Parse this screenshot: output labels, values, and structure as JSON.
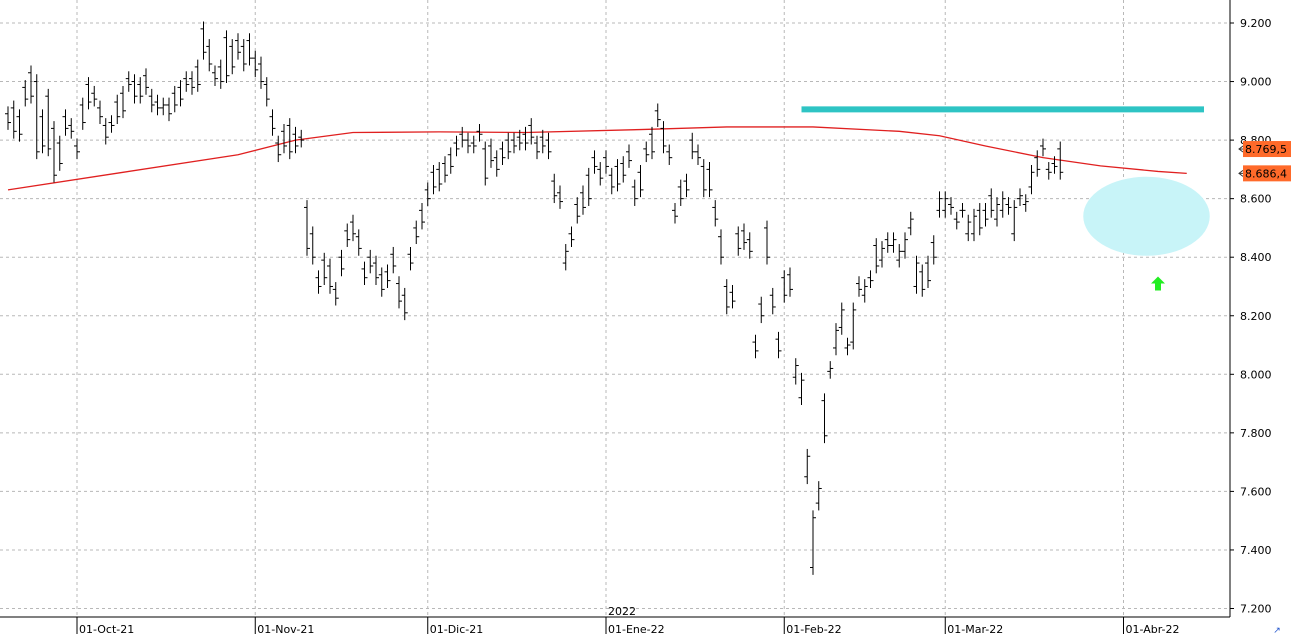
{
  "chart_data": {
    "type": "ohlc",
    "grid": true,
    "ylim": [
      7200,
      9250
    ],
    "y_ticks": [
      {
        "value": 9200,
        "label": "9.200"
      },
      {
        "value": 9000,
        "label": "9.000"
      },
      {
        "value": 8800,
        "label": "8.800"
      },
      {
        "value": 8600,
        "label": "8.600"
      },
      {
        "value": 8400,
        "label": "8.400"
      },
      {
        "value": 8200,
        "label": "8.200"
      },
      {
        "value": 8000,
        "label": "8.000"
      },
      {
        "value": 7800,
        "label": "7.800"
      },
      {
        "value": 7600,
        "label": "7.600"
      },
      {
        "value": 7400,
        "label": "7.400"
      },
      {
        "value": 7200,
        "label": "7.200"
      }
    ],
    "x_ticks": [
      {
        "bar": 12,
        "label": "01-Oct-21"
      },
      {
        "bar": 43,
        "label": "01-Nov-21"
      },
      {
        "bar": 73,
        "label": "01-Dic-21"
      },
      {
        "bar": 104,
        "label": "01-Ene-22",
        "year": "2022"
      },
      {
        "bar": 135,
        "label": "01-Feb-22"
      },
      {
        "bar": 163,
        "label": "01-Mar-22"
      },
      {
        "bar": 194,
        "label": "01-Abr-22"
      }
    ],
    "bars": [
      [
        8890,
        8860
      ],
      [
        8910,
        8830
      ],
      [
        8880,
        8820
      ],
      [
        8980,
        8940
      ],
      [
        9030,
        8950
      ],
      [
        9000,
        8760
      ],
      [
        8880,
        8780
      ],
      [
        8950,
        8770
      ],
      [
        8840,
        8680
      ],
      [
        8790,
        8720
      ],
      [
        8880,
        8840
      ],
      [
        8850,
        8830
      ],
      [
        8780,
        8760
      ],
      [
        8920,
        8860
      ],
      [
        8990,
        8930
      ],
      [
        8960,
        8940
      ],
      [
        8910,
        8880
      ],
      [
        8850,
        8810
      ],
      [
        8860,
        8850
      ],
      [
        8930,
        8880
      ],
      [
        8960,
        8900
      ],
      [
        9010,
        8990
      ],
      [
        9000,
        8950
      ],
      [
        8990,
        8950
      ],
      [
        9020,
        8980
      ],
      [
        8950,
        8920
      ],
      [
        8930,
        8910
      ],
      [
        8910,
        8920
      ],
      [
        8920,
        8890
      ],
      [
        8960,
        8920
      ],
      [
        8980,
        8940
      ],
      [
        9010,
        8990
      ],
      [
        9010,
        8980
      ],
      [
        9050,
        8990
      ],
      [
        9180,
        9100
      ],
      [
        9120,
        9060
      ],
      [
        9030,
        9010
      ],
      [
        9050,
        9000
      ],
      [
        9150,
        9020
      ],
      [
        9120,
        9050
      ],
      [
        9140,
        9100
      ],
      [
        9120,
        9060
      ],
      [
        9140,
        9080
      ],
      [
        9080,
        9040
      ],
      [
        9060,
        9000
      ],
      [
        8990,
        8940
      ],
      [
        8880,
        8840
      ],
      [
        8790,
        8750
      ],
      [
        8830,
        8780
      ],
      [
        8850,
        8760
      ],
      [
        8820,
        8780
      ],
      [
        8810,
        8800
      ],
      [
        8570,
        8430
      ],
      [
        8480,
        8400
      ],
      [
        8330,
        8300
      ],
      [
        8390,
        8330
      ],
      [
        8370,
        8300
      ],
      [
        8290,
        8260
      ],
      [
        8400,
        8360
      ],
      [
        8490,
        8460
      ],
      [
        8520,
        8480
      ],
      [
        8470,
        8430
      ],
      [
        8360,
        8330
      ],
      [
        8400,
        8370
      ],
      [
        8380,
        8330
      ],
      [
        8340,
        8290
      ],
      [
        8350,
        8320
      ],
      [
        8410,
        8370
      ],
      [
        8310,
        8250
      ],
      [
        8270,
        8210
      ],
      [
        8410,
        8380
      ],
      [
        8500,
        8470
      ],
      [
        8560,
        8520
      ],
      [
        8630,
        8600
      ],
      [
        8690,
        8640
      ],
      [
        8700,
        8650
      ],
      [
        8720,
        8680
      ],
      [
        8750,
        8710
      ],
      [
        8790,
        8770
      ],
      [
        8820,
        8800
      ],
      [
        8800,
        8780
      ],
      [
        8790,
        8780
      ],
      [
        8830,
        8820
      ],
      [
        8770,
        8670
      ],
      [
        8780,
        8730
      ],
      [
        8740,
        8700
      ],
      [
        8770,
        8740
      ],
      [
        8800,
        8760
      ],
      [
        8800,
        8780
      ],
      [
        8810,
        8790
      ],
      [
        8820,
        8790
      ],
      [
        8850,
        8810
      ],
      [
        8790,
        8760
      ],
      [
        8810,
        8780
      ],
      [
        8800,
        8760
      ],
      [
        8660,
        8610
      ],
      [
        8620,
        8590
      ],
      [
        8380,
        8420
      ],
      [
        8480,
        8460
      ],
      [
        8580,
        8540
      ],
      [
        8620,
        8570
      ],
      [
        8680,
        8600
      ],
      [
        8740,
        8710
      ],
      [
        8700,
        8670
      ],
      [
        8740,
        8710
      ],
      [
        8680,
        8640
      ],
      [
        8710,
        8650
      ],
      [
        8720,
        8680
      ],
      [
        8760,
        8730
      ],
      [
        8640,
        8600
      ],
      [
        8690,
        8630
      ],
      [
        8770,
        8750
      ],
      [
        8820,
        8760
      ],
      [
        8900,
        8870
      ],
      [
        8840,
        8780
      ],
      [
        8760,
        8740
      ],
      [
        8560,
        8540
      ],
      [
        8640,
        8600
      ],
      [
        8660,
        8630
      ],
      [
        8800,
        8760
      ],
      [
        8760,
        8740
      ],
      [
        8710,
        8630
      ],
      [
        8700,
        8630
      ],
      [
        8570,
        8530
      ],
      [
        8470,
        8400
      ],
      [
        8300,
        8230
      ],
      [
        8280,
        8250
      ],
      [
        8480,
        8430
      ],
      [
        8490,
        8450
      ],
      [
        8460,
        8420
      ],
      [
        8110,
        8080
      ],
      [
        8240,
        8200
      ],
      [
        8500,
        8400
      ],
      [
        8270,
        8230
      ],
      [
        8120,
        8080
      ],
      [
        8330,
        8270
      ],
      [
        8340,
        8290
      ],
      [
        7990,
        8030
      ],
      [
        7920,
        7980
      ],
      [
        7650,
        7720
      ],
      [
        7340,
        7510
      ],
      [
        7560,
        7610
      ],
      [
        7910,
        7790
      ],
      [
        8010,
        8020
      ],
      [
        8090,
        8150
      ],
      [
        8160,
        8220
      ],
      [
        8090,
        8100
      ],
      [
        8110,
        8220
      ],
      [
        8310,
        8290
      ],
      [
        8270,
        8300
      ],
      [
        8330,
        8320
      ],
      [
        8440,
        8370
      ],
      [
        8390,
        8430
      ],
      [
        8460,
        8440
      ],
      [
        8440,
        8460
      ],
      [
        8390,
        8420
      ],
      [
        8420,
        8460
      ],
      [
        8500,
        8530
      ],
      [
        8300,
        8380
      ],
      [
        8350,
        8290
      ],
      [
        8380,
        8320
      ],
      [
        8450,
        8400
      ],
      [
        8560,
        8600
      ],
      [
        8560,
        8600
      ],
      [
        8580,
        8570
      ],
      [
        8530,
        8520
      ],
      [
        8560,
        8560
      ],
      [
        8480,
        8520
      ],
      [
        8480,
        8540
      ],
      [
        8560,
        8500
      ],
      [
        8560,
        8530
      ],
      [
        8610,
        8560
      ],
      [
        8530,
        8580
      ],
      [
        8560,
        8600
      ],
      [
        8580,
        8570
      ],
      [
        8480,
        8570
      ],
      [
        8600,
        8610
      ],
      [
        8580,
        8590
      ],
      [
        8640,
        8690
      ],
      [
        8740,
        8700
      ],
      [
        8780,
        8770
      ],
      [
        8700,
        8690
      ],
      [
        8720,
        8710
      ],
      [
        8770,
        8690
      ]
    ],
    "moving_average": {
      "color": "#e02020",
      "points": [
        [
          0,
          8630
        ],
        [
          20,
          8690
        ],
        [
          40,
          8750
        ],
        [
          50,
          8800
        ],
        [
          60,
          8826
        ],
        [
          75,
          8828
        ],
        [
          90,
          8826
        ],
        [
          110,
          8836
        ],
        [
          125,
          8845
        ],
        [
          140,
          8845
        ],
        [
          155,
          8830
        ],
        [
          162,
          8815
        ],
        [
          170,
          8780
        ],
        [
          180,
          8740
        ],
        [
          190,
          8712
        ],
        [
          200,
          8693
        ],
        [
          205,
          8686.4
        ]
      ]
    },
    "resistance": {
      "value": 8905,
      "from_bar": 138,
      "to_bar": 208,
      "color": "#2ec4c4"
    },
    "consolidation_ellipse": {
      "from_bar": 187,
      "to_bar": 209,
      "low": 8405,
      "high": 8675,
      "color": "#c8f4f8"
    },
    "signal_arrow": {
      "bar": 200,
      "value": 8310,
      "direction": "up",
      "color": "#22ee22"
    },
    "price_badges": [
      {
        "value": 8769.5,
        "label": "8.769,5",
        "color": "#ff6a2a"
      },
      {
        "value": 8686.4,
        "label": "8.686,4",
        "color": "#ff6a2a"
      }
    ]
  }
}
